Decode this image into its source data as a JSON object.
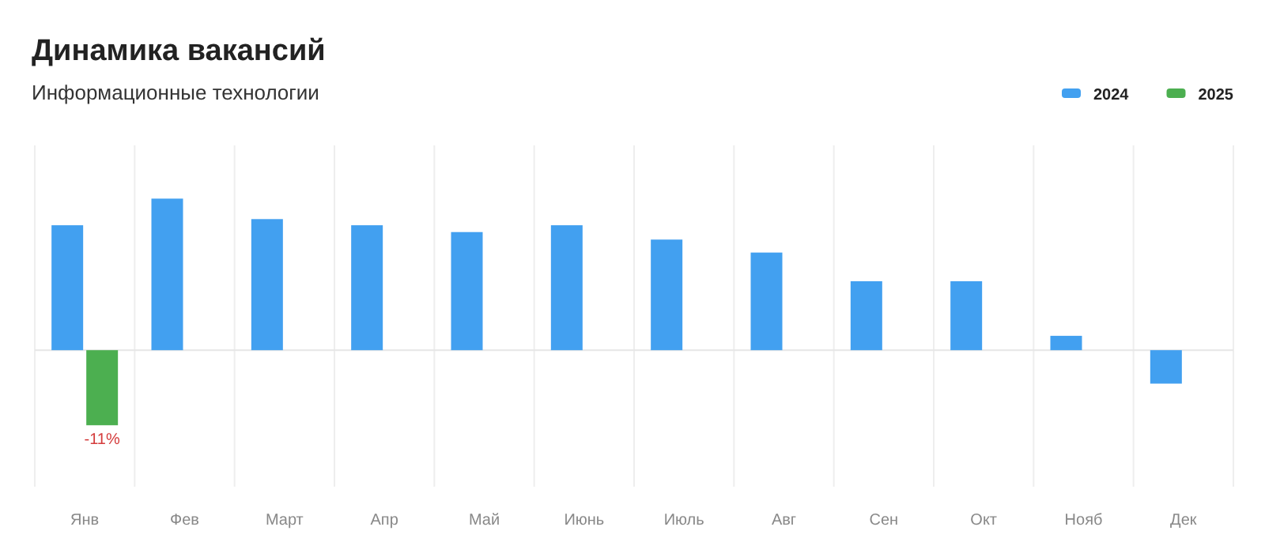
{
  "chart_data": {
    "type": "bar",
    "title": "Динамика вакансий",
    "subtitle": "Информационные технологии",
    "categories": [
      "Янв",
      "Фев",
      "Март",
      "Апр",
      "Май",
      "Июнь",
      "Июль",
      "Авг",
      "Сен",
      "Окт",
      "Нояб",
      "Дек"
    ],
    "series": [
      {
        "name": "2024",
        "color": "#42a0f0",
        "values": [
          18.3,
          22.2,
          19.2,
          18.3,
          17.3,
          18.3,
          16.2,
          14.3,
          10.1,
          10.1,
          2.1,
          -4.9
        ]
      },
      {
        "name": "2025",
        "color": "#4caf50",
        "values": [
          -11,
          null,
          null,
          null,
          null,
          null,
          null,
          null,
          null,
          null,
          null,
          null
        ],
        "value_labels": [
          "-11%",
          null,
          null,
          null,
          null,
          null,
          null,
          null,
          null,
          null,
          null,
          null
        ]
      }
    ],
    "ylim": [
      -20,
      30
    ],
    "grid": "x",
    "legend": "top right",
    "tick_labels": "x"
  }
}
